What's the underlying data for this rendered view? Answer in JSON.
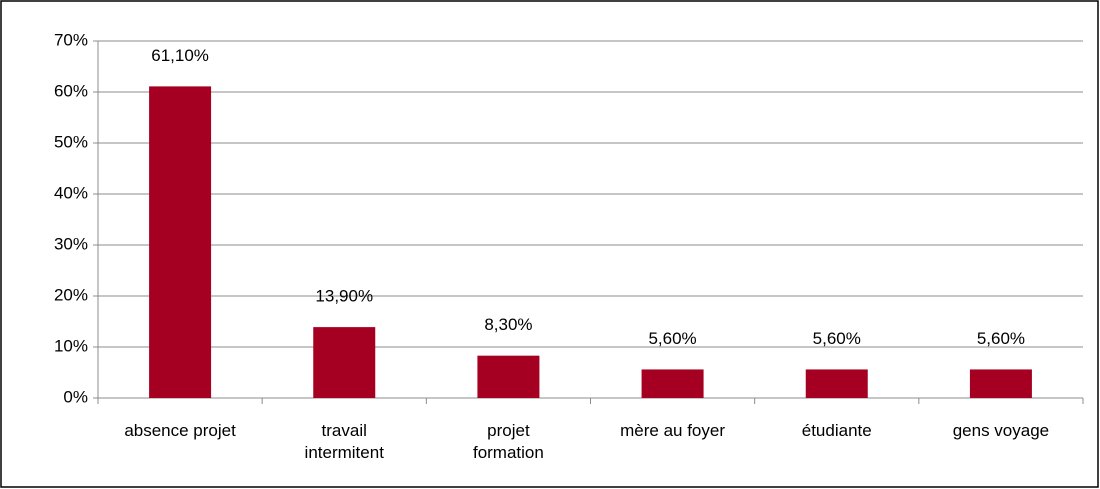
{
  "chart_data": {
    "type": "bar",
    "categories": [
      "absence projet",
      "travail\nintermitent",
      "projet\nformation",
      "mère au foyer",
      "étudiante",
      "gens voyage"
    ],
    "values": [
      61.1,
      13.9,
      8.3,
      5.6,
      5.6,
      5.6
    ],
    "value_labels": [
      "61,10%",
      "13,90%",
      "8,30%",
      "5,60%",
      "5,60%",
      "5,60%"
    ],
    "color": "#a50021",
    "ylim": [
      0,
      70
    ],
    "yticks": [
      {
        "value": 0,
        "label": "0%"
      },
      {
        "value": 10,
        "label": "10%"
      },
      {
        "value": 20,
        "label": "20%"
      },
      {
        "value": 30,
        "label": "30%"
      },
      {
        "value": 40,
        "label": "40%"
      },
      {
        "value": 50,
        "label": "50%"
      },
      {
        "value": 60,
        "label": "60%"
      },
      {
        "value": 70,
        "label": "70%"
      }
    ],
    "grid": true
  }
}
